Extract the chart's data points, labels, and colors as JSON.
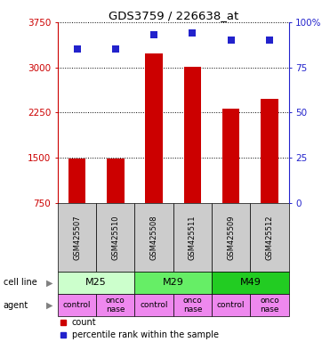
{
  "title": "GDS3759 / 226638_at",
  "samples": [
    "GSM425507",
    "GSM425510",
    "GSM425508",
    "GSM425511",
    "GSM425509",
    "GSM425512"
  ],
  "bar_values": [
    1480,
    1490,
    3230,
    3010,
    2320,
    2480
  ],
  "percentile_values": [
    85,
    85,
    93,
    94,
    90,
    90
  ],
  "bar_color": "#cc0000",
  "percentile_color": "#2222cc",
  "ylim_left": [
    750,
    3750
  ],
  "ylim_right": [
    0,
    100
  ],
  "yticks_left": [
    750,
    1500,
    2250,
    3000,
    3750
  ],
  "yticks_right": [
    0,
    25,
    50,
    75,
    100
  ],
  "ytick_labels_left": [
    "750",
    "1500",
    "2250",
    "3000",
    "3750"
  ],
  "ytick_labels_right": [
    "0",
    "25",
    "50",
    "75",
    "100%"
  ],
  "cell_line_groups": [
    {
      "label": "M25",
      "start": 0,
      "end": 2,
      "color": "#ccffcc"
    },
    {
      "label": "M29",
      "start": 2,
      "end": 4,
      "color": "#66ee66"
    },
    {
      "label": "M49",
      "start": 4,
      "end": 6,
      "color": "#22cc22"
    }
  ],
  "agents": [
    "control",
    "onconase",
    "control",
    "onconase",
    "control",
    "onconase"
  ],
  "agent_color": "#ee88ee",
  "sample_box_color": "#cccccc",
  "left_label_cell": "cell line",
  "left_label_agent": "agent",
  "legend_count_label": "count",
  "legend_pct_label": "percentile rank within the sample",
  "bar_width": 0.45
}
